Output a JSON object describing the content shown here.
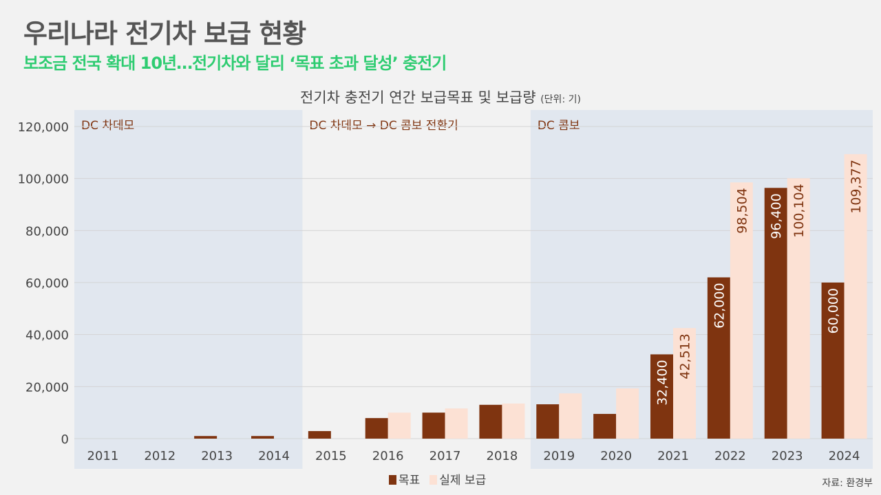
{
  "title": "우리나라 전기차 보급 현황",
  "subtitle": "보조금 전국 확대 10년…전기차와 달리 ‘목표 초과 달성’ 충전기",
  "source": "자료: 환경부",
  "chart_data": {
    "type": "bar",
    "title": "전기차 충전기 연간 보급목표 및 보급량",
    "unit": "(단위: 기)",
    "categories": [
      "2011",
      "2012",
      "2013",
      "2014",
      "2015",
      "2016",
      "2017",
      "2018",
      "2019",
      "2020",
      "2021",
      "2022",
      "2023",
      "2024"
    ],
    "series": [
      {
        "name": "목표",
        "color": "#7f3410",
        "values": [
          0,
          0,
          1000,
          1000,
          2900,
          7900,
          10000,
          13000,
          13200,
          9500,
          32400,
          62000,
          96400,
          60000
        ],
        "labels": [
          null,
          null,
          null,
          null,
          null,
          null,
          null,
          null,
          null,
          null,
          "32,400",
          "62,000",
          "96,400",
          "60,000"
        ]
      },
      {
        "name": "실제 보급",
        "color": "#fce1d4",
        "values": [
          0,
          0,
          0,
          0,
          0,
          10000,
          11600,
          13500,
          17400,
          19300,
          42513,
          98504,
          100104,
          109377
        ],
        "labels": [
          null,
          null,
          null,
          null,
          null,
          null,
          null,
          null,
          null,
          null,
          "42,513",
          "98,504",
          "100,104",
          "109,377"
        ]
      }
    ],
    "ylim": [
      0,
      120000
    ],
    "yticks": [
      "0",
      "20,000",
      "40,000",
      "60,000",
      "80,000",
      "100,000",
      "120,000"
    ],
    "grid": true,
    "legend": "bottom",
    "regions": [
      {
        "label": "DC 차데모",
        "from": 0,
        "to": 3,
        "shaded": true
      },
      {
        "label": "DC 차데모 → DC 콤보 전환기",
        "from": 4,
        "to": 7,
        "shaded": false
      },
      {
        "label": "DC 콤보",
        "from": 8,
        "to": 13,
        "shaded": true
      }
    ]
  }
}
